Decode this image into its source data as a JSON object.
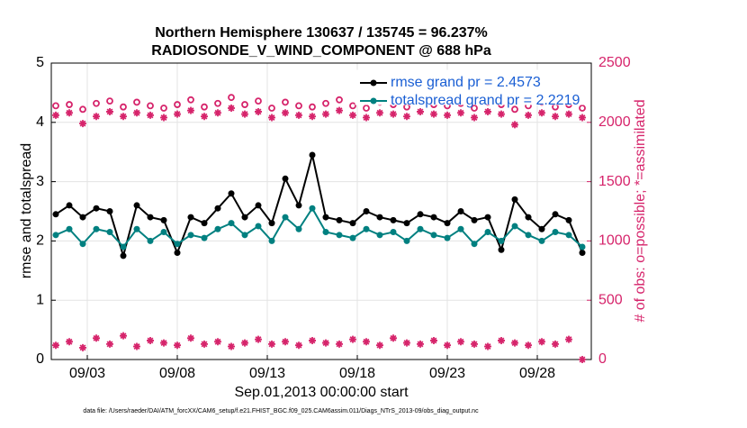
{
  "chart_data": {
    "type": "line",
    "title": "Northern Hemisphere 130637 / 135745 = 96.237%",
    "subtitle": "RADIOSONDE_V_WIND_COMPONENT @ 688 hPa",
    "xlabel": "Sep.01,2013 00:00:00 start",
    "ylabel": "rmse and totalspread",
    "y2label": "# of obs: o=possible; *=assimilated",
    "footnote": "data file: /Users/raeder/DAI/ATM_forcXX/CAM6_setup/f.e21.FHIST_BGC.f09_025.CAM6assim.011/Diags_NTrS_2013-09/obs_diag_output.nc",
    "grid": true,
    "x": [
      1.25,
      2,
      2.75,
      3.5,
      4.25,
      5,
      5.75,
      6.5,
      7.25,
      8,
      8.75,
      9.5,
      10.25,
      11,
      11.75,
      12.5,
      13.25,
      14,
      14.75,
      15.5,
      16.25,
      17,
      17.75,
      18.5,
      19.25,
      20,
      20.75,
      21.5,
      22.25,
      23,
      23.75,
      24.5,
      25.25,
      26,
      26.75,
      27.5,
      28.25,
      29,
      29.75,
      30.5
    ],
    "xlim": [
      1,
      31
    ],
    "xticks": [
      {
        "value": 3,
        "label": "09/03"
      },
      {
        "value": 8,
        "label": "09/08"
      },
      {
        "value": 13,
        "label": "09/13"
      },
      {
        "value": 18,
        "label": "09/18"
      },
      {
        "value": 23,
        "label": "09/23"
      },
      {
        "value": 28,
        "label": "09/28"
      }
    ],
    "ylim": [
      0,
      5
    ],
    "yticks": [
      0,
      1,
      2,
      3,
      4,
      5
    ],
    "y2lim": [
      0,
      2500
    ],
    "y2ticks": [
      0,
      500,
      1000,
      1500,
      2000,
      2500
    ],
    "y2color": "#d6246b",
    "legend_color": "#1a5fd4",
    "series": [
      {
        "name": "rmse grand pr = 2.4573",
        "color": "#000000",
        "marker": "dot",
        "line": true,
        "values": [
          2.45,
          2.6,
          2.4,
          2.55,
          2.5,
          1.75,
          2.6,
          2.4,
          2.35,
          1.8,
          2.4,
          2.3,
          2.55,
          2.8,
          2.4,
          2.6,
          2.3,
          3.05,
          2.6,
          3.45,
          2.4,
          2.35,
          2.3,
          2.5,
          2.4,
          2.35,
          2.3,
          2.45,
          2.4,
          2.3,
          2.5,
          2.35,
          2.4,
          1.85,
          2.7,
          2.4,
          2.2,
          2.45,
          2.35,
          1.8
        ]
      },
      {
        "name": "totalspread grand pr = 2.2219",
        "color": "#008080",
        "marker": "dot",
        "line": true,
        "values": [
          2.1,
          2.2,
          1.95,
          2.2,
          2.15,
          1.9,
          2.2,
          2.0,
          2.15,
          1.95,
          2.1,
          2.05,
          2.2,
          2.3,
          2.1,
          2.25,
          2.0,
          2.4,
          2.2,
          2.55,
          2.15,
          2.1,
          2.05,
          2.2,
          2.1,
          2.15,
          2.0,
          2.2,
          2.1,
          2.05,
          2.2,
          1.95,
          2.15,
          2.0,
          2.25,
          2.1,
          2.0,
          2.15,
          2.1,
          1.9
        ]
      },
      {
        "color": "#d6246b",
        "marker": "circle",
        "axis": "y2",
        "values": [
          2140,
          2150,
          2110,
          2160,
          2180,
          2130,
          2170,
          2140,
          2120,
          2150,
          2190,
          2130,
          2160,
          2210,
          2150,
          2180,
          2120,
          2170,
          2140,
          2130,
          2160,
          2190,
          2140,
          2120,
          2170,
          2150,
          2130,
          2180,
          2150,
          2140,
          2160,
          2120,
          2170,
          2150,
          2110,
          2140,
          2170,
          2130,
          2150,
          2120
        ]
      },
      {
        "color": "#d6246b",
        "marker": "star",
        "axis": "y2",
        "values": [
          2060,
          2080,
          1990,
          2050,
          2090,
          2050,
          2080,
          2060,
          2040,
          2070,
          2100,
          2050,
          2080,
          2120,
          2070,
          2090,
          2040,
          2080,
          2060,
          2050,
          2070,
          2100,
          2060,
          2040,
          2080,
          2070,
          2050,
          2090,
          2070,
          2060,
          2080,
          2040,
          2090,
          2070,
          1980,
          2060,
          2080,
          2050,
          2070,
          2040
        ]
      },
      {
        "color": "#d6246b",
        "marker": "star",
        "axis": "y2",
        "values": [
          120,
          150,
          100,
          180,
          130,
          200,
          110,
          160,
          140,
          120,
          180,
          130,
          150,
          110,
          140,
          170,
          130,
          150,
          120,
          160,
          140,
          130,
          170,
          150,
          120,
          180,
          140,
          130,
          160,
          120,
          150,
          130,
          110,
          160,
          140,
          120,
          150,
          130,
          170,
          0
        ]
      }
    ]
  }
}
